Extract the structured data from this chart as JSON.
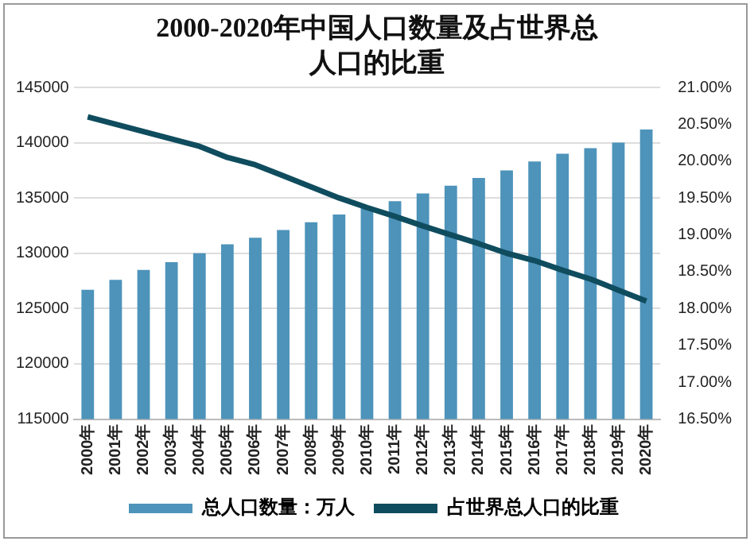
{
  "chart_data": {
    "type": "bar",
    "title": "2000-2020年中国人口数量及占世界总人口的比重",
    "categories": [
      "2000年",
      "2001年",
      "2002年",
      "2003年",
      "2004年",
      "2005年",
      "2006年",
      "2007年",
      "2008年",
      "2009年",
      "2010年",
      "2011年",
      "2012年",
      "2013年",
      "2014年",
      "2015年",
      "2016年",
      "2017年",
      "2018年",
      "2019年",
      "2020年"
    ],
    "series": [
      {
        "name": "总人口数量：万人",
        "color": "#4d93ba",
        "values": [
          126700,
          127600,
          128500,
          129200,
          130000,
          130800,
          131400,
          132100,
          132800,
          133500,
          134100,
          134700,
          135400,
          136100,
          136800,
          137500,
          138300,
          139000,
          139500,
          140000,
          141200
        ]
      },
      {
        "name": "占世界总人口的比重",
        "type": "line",
        "axis": "y2",
        "color": "#0f4c5e",
        "values": [
          20.6,
          20.5,
          20.4,
          20.3,
          20.2,
          20.05,
          19.95,
          19.8,
          19.65,
          19.5,
          19.37,
          19.25,
          19.12,
          19.0,
          18.88,
          18.75,
          18.65,
          18.52,
          18.4,
          18.25,
          18.1
        ]
      }
    ],
    "ylim": [
      115000,
      145000
    ],
    "yticks": [
      115000,
      120000,
      125000,
      130000,
      135000,
      140000,
      145000
    ],
    "y2lim": [
      16.5,
      21
    ],
    "y2ticks": [
      {
        "value": 16.5,
        "label": "16.50%"
      },
      {
        "value": 17,
        "label": "17.00%"
      },
      {
        "value": 17.5,
        "label": "17.50%"
      },
      {
        "value": 18,
        "label": "18.00%"
      },
      {
        "value": 18.5,
        "label": "18.50%"
      },
      {
        "value": 19,
        "label": "19.00%"
      },
      {
        "value": 19.5,
        "label": "19.50%"
      },
      {
        "value": 20,
        "label": "20.00%"
      },
      {
        "value": 20.5,
        "label": "20.50%"
      },
      {
        "value": 21,
        "label": "21.00%"
      }
    ],
    "grid": "y",
    "legend": "bottom",
    "marker": "none"
  }
}
